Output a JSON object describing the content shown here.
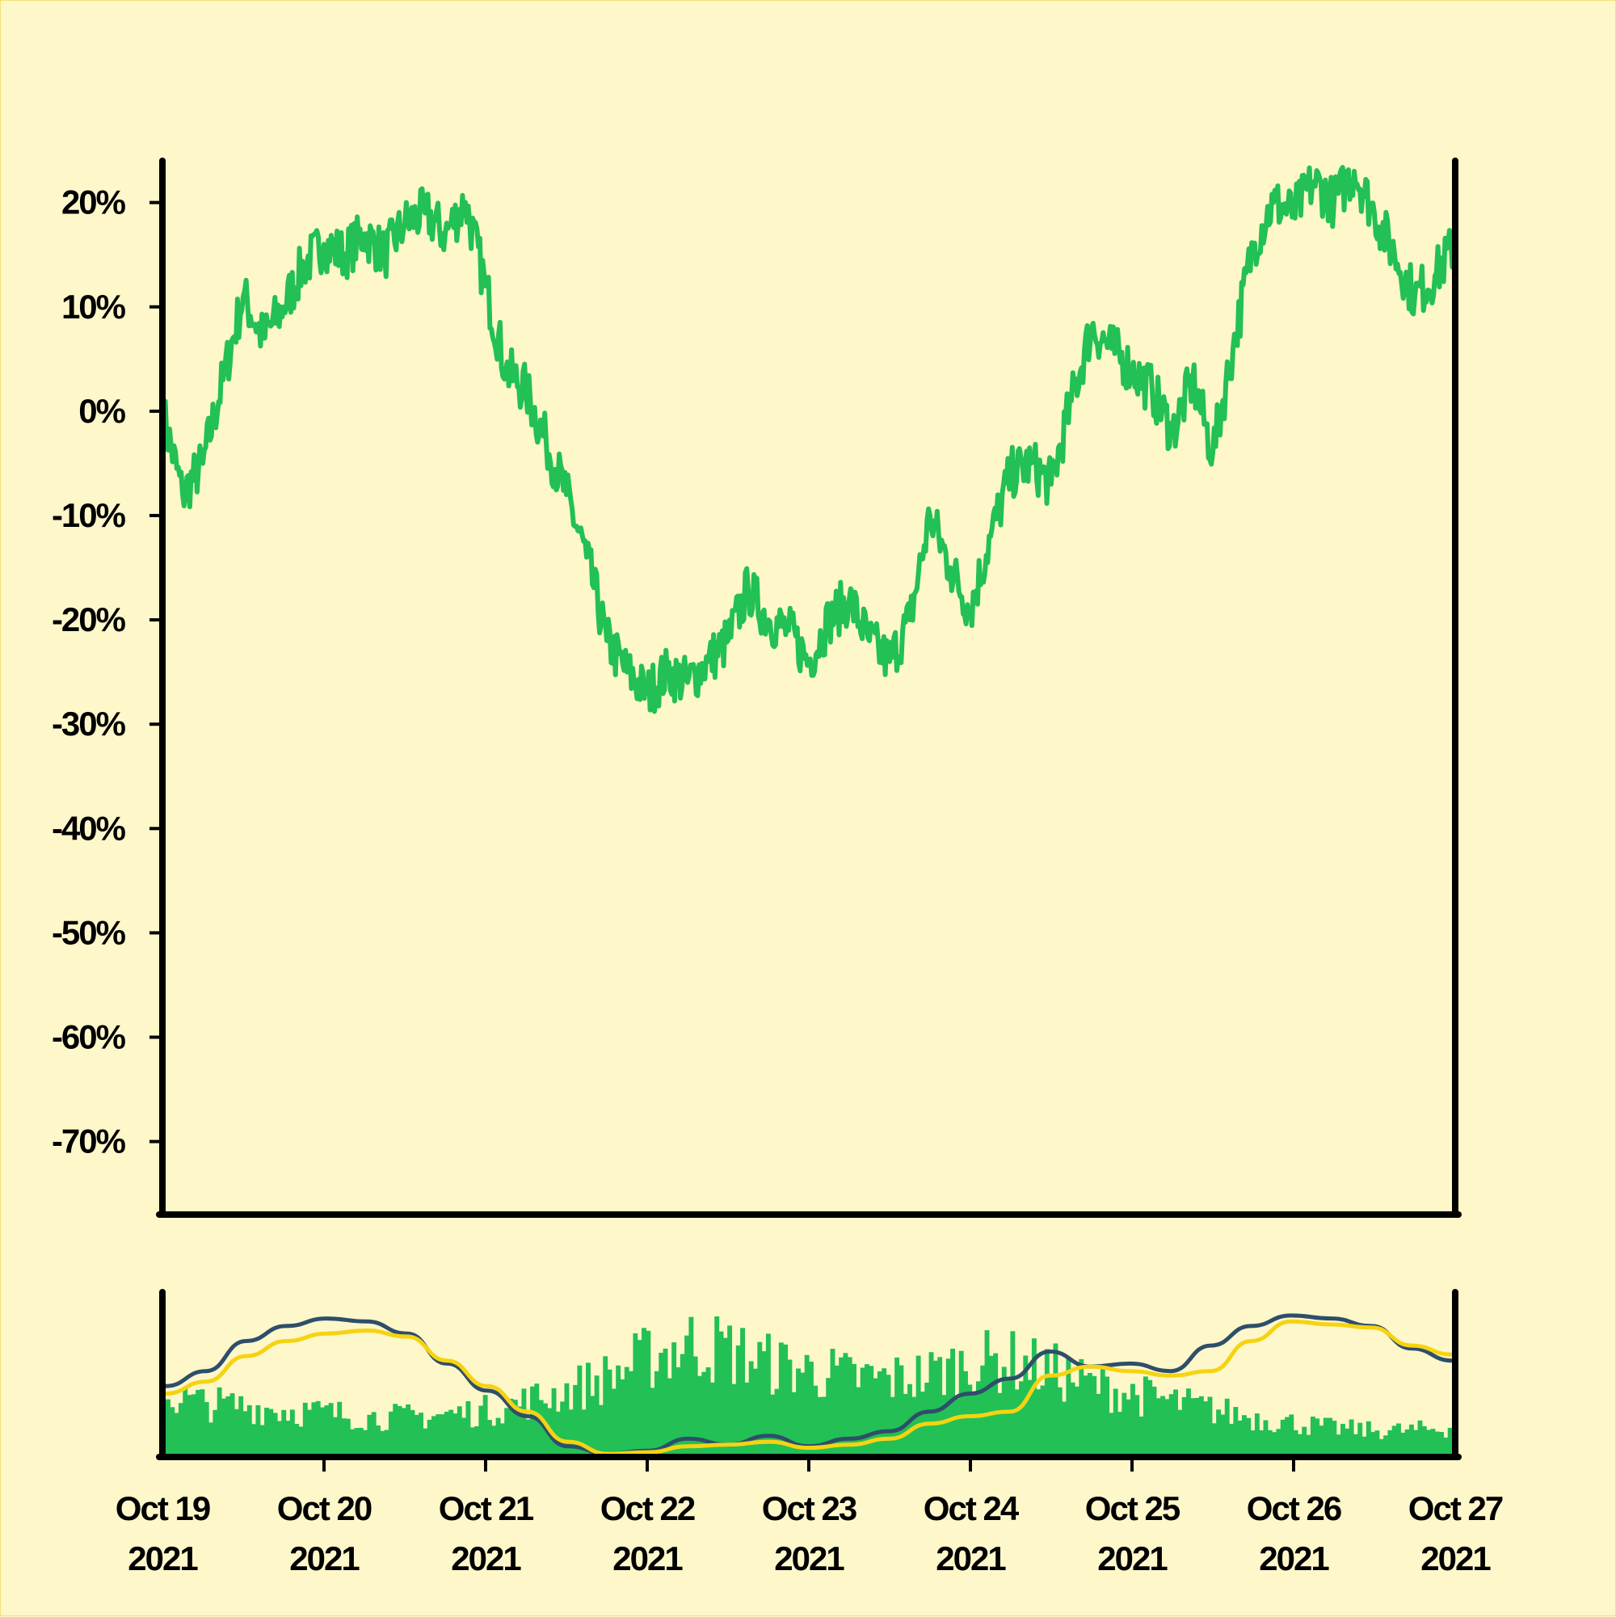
{
  "chart_data": [
    {
      "type": "line",
      "title": "",
      "xlabel": "",
      "ylabel": "",
      "ylim": [
        -77,
        24
      ],
      "xlim": [
        "2021-10-19",
        "2021-10-27"
      ],
      "yticks": [
        "20%",
        "10%",
        "0%",
        "-10%",
        "-20%",
        "-30%",
        "-40%",
        "-50%",
        "-60%",
        "-70%"
      ],
      "ytick_values": [
        20,
        10,
        0,
        -10,
        -20,
        -30,
        -40,
        -50,
        -60,
        -70
      ],
      "grid": false,
      "series": [
        {
          "color": "#22c055",
          "x": [
            "2021-10-19 00:00",
            "2021-10-19 03:00",
            "2021-10-19 06:00",
            "2021-10-19 09:00",
            "2021-10-19 12:00",
            "2021-10-19 15:00",
            "2021-10-19 18:00",
            "2021-10-19 21:00",
            "2021-10-20 00:00",
            "2021-10-20 03:00",
            "2021-10-20 06:00",
            "2021-10-20 09:00",
            "2021-10-20 12:00",
            "2021-10-20 15:00",
            "2021-10-20 18:00",
            "2021-10-20 21:00",
            "2021-10-21 00:00",
            "2021-10-21 03:00",
            "2021-10-21 06:00",
            "2021-10-21 09:00",
            "2021-10-21 12:00",
            "2021-10-21 15:00",
            "2021-10-21 18:00",
            "2021-10-21 21:00",
            "2021-10-22 00:00",
            "2021-10-22 03:00",
            "2021-10-22 06:00",
            "2021-10-22 09:00",
            "2021-10-22 12:00",
            "2021-10-22 15:00",
            "2021-10-22 18:00",
            "2021-10-22 21:00",
            "2021-10-23 00:00",
            "2021-10-23 03:00",
            "2021-10-23 06:00",
            "2021-10-23 09:00",
            "2021-10-23 12:00",
            "2021-10-23 15:00",
            "2021-10-23 18:00",
            "2021-10-23 21:00",
            "2021-10-24 00:00",
            "2021-10-24 03:00",
            "2021-10-24 06:00",
            "2021-10-24 09:00",
            "2021-10-24 12:00",
            "2021-10-24 15:00",
            "2021-10-24 18:00",
            "2021-10-24 21:00",
            "2021-10-25 00:00",
            "2021-10-25 03:00",
            "2021-10-25 06:00",
            "2021-10-25 09:00",
            "2021-10-25 12:00",
            "2021-10-25 15:00",
            "2021-10-25 18:00",
            "2021-10-25 21:00",
            "2021-10-26 00:00",
            "2021-10-26 03:00",
            "2021-10-26 06:00",
            "2021-10-26 09:00",
            "2021-10-26 12:00",
            "2021-10-26 15:00",
            "2021-10-26 18:00",
            "2021-10-26 21:00",
            "2021-10-27 00:00"
          ],
          "values": [
            0,
            -8,
            -5,
            3,
            11,
            7,
            10,
            14,
            16,
            15,
            17,
            15,
            18,
            19,
            17,
            20,
            12,
            4,
            2,
            -3,
            -8,
            -14,
            -22,
            -25,
            -27,
            -25,
            -26,
            -24,
            -22,
            -17,
            -20,
            -21,
            -24,
            -20,
            -18,
            -22,
            -24,
            -20,
            -10,
            -15,
            -19,
            -12,
            -6,
            -5,
            -7,
            1,
            8,
            6,
            4,
            2,
            -2,
            3,
            -4,
            6,
            16,
            20,
            19,
            22,
            20,
            23,
            19,
            15,
            11,
            13,
            16
          ]
        }
      ]
    },
    {
      "type": "bar",
      "title": "",
      "xlabel": "",
      "ylabel": "",
      "xlim": [
        "2021-10-19",
        "2021-10-27"
      ],
      "xticks": [
        {
          "month_day": "Oct 19",
          "year": "2021"
        },
        {
          "month_day": "Oct 20",
          "year": "2021"
        },
        {
          "month_day": "Oct 21",
          "year": "2021"
        },
        {
          "month_day": "Oct 22",
          "year": "2021"
        },
        {
          "month_day": "Oct 23",
          "year": "2021"
        },
        {
          "month_day": "Oct 24",
          "year": "2021"
        },
        {
          "month_day": "Oct 25",
          "year": "2021"
        },
        {
          "month_day": "Oct 26",
          "year": "2021"
        },
        {
          "month_day": "Oct 27",
          "year": "2021"
        }
      ],
      "grid": false,
      "bar_color": "#22c055",
      "bar_values_relative": [
        0.45,
        0.4,
        0.38,
        0.35,
        0.33,
        0.3,
        0.3,
        0.32,
        0.35,
        0.42,
        0.5,
        0.6,
        0.75,
        0.85,
        0.8,
        0.7,
        0.65,
        0.6,
        0.58,
        0.62,
        0.7,
        0.72,
        0.65,
        0.55,
        0.48,
        0.42,
        0.36,
        0.3,
        0.26,
        0.22,
        0.2,
        0.2,
        0.22
      ],
      "overlay_lines": [
        {
          "color": "#2e4e6a",
          "values_relative": [
            0.45,
            0.55,
            0.75,
            0.85,
            0.9,
            0.88,
            0.8,
            0.6,
            0.42,
            0.25,
            0.05,
            0.0,
            0.02,
            0.1,
            0.06,
            0.12,
            0.05,
            0.1,
            0.15,
            0.28,
            0.4,
            0.5,
            0.68,
            0.58,
            0.6,
            0.55,
            0.72,
            0.85,
            0.92,
            0.9,
            0.85,
            0.7,
            0.62
          ]
        },
        {
          "color": "#f6d312",
          "values_relative": [
            0.4,
            0.48,
            0.65,
            0.75,
            0.8,
            0.82,
            0.78,
            0.62,
            0.45,
            0.28,
            0.08,
            0.0,
            0.01,
            0.05,
            0.06,
            0.08,
            0.04,
            0.06,
            0.1,
            0.2,
            0.25,
            0.28,
            0.52,
            0.58,
            0.55,
            0.52,
            0.55,
            0.75,
            0.88,
            0.86,
            0.84,
            0.72,
            0.66
          ]
        }
      ]
    }
  ]
}
